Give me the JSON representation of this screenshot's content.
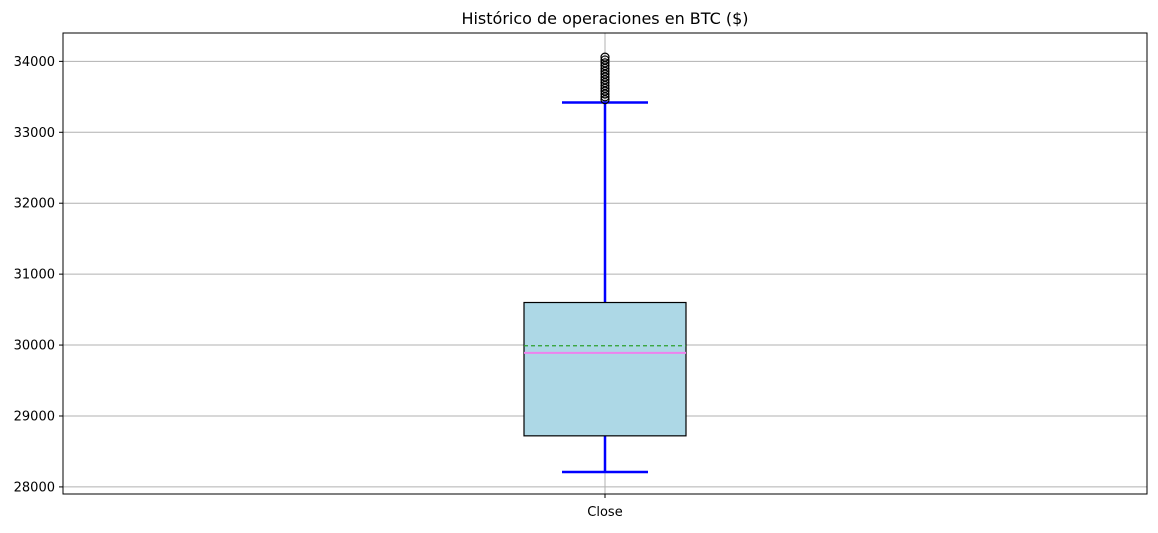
{
  "chart_data": {
    "type": "box",
    "title": "Histórico de operaciones en BTC ($)",
    "xlabel": "",
    "ylabel": "",
    "categories": [
      "Close"
    ],
    "ylim": [
      27900,
      34400
    ],
    "yticks": [
      28000,
      29000,
      30000,
      31000,
      32000,
      33000,
      34000
    ],
    "grid": true,
    "series": [
      {
        "category": "Close",
        "whisker_low": 28210,
        "q1": 28720,
        "median": 29890,
        "mean": 29990,
        "q3": 30600,
        "whisker_high": 33420,
        "outliers": [
          33460,
          33500,
          33540,
          33580,
          33620,
          33660,
          33700,
          33740,
          33780,
          33820,
          33860,
          33900,
          33940,
          33980,
          34020,
          34060
        ]
      }
    ],
    "colors": {
      "box_fill": "#add8e6",
      "box_edge": "#000000",
      "whisker": "#0000ff",
      "median": "#ee82ee",
      "mean": "#2ca02c",
      "outlier": "#000000",
      "grid": "#b0b0b0"
    }
  }
}
